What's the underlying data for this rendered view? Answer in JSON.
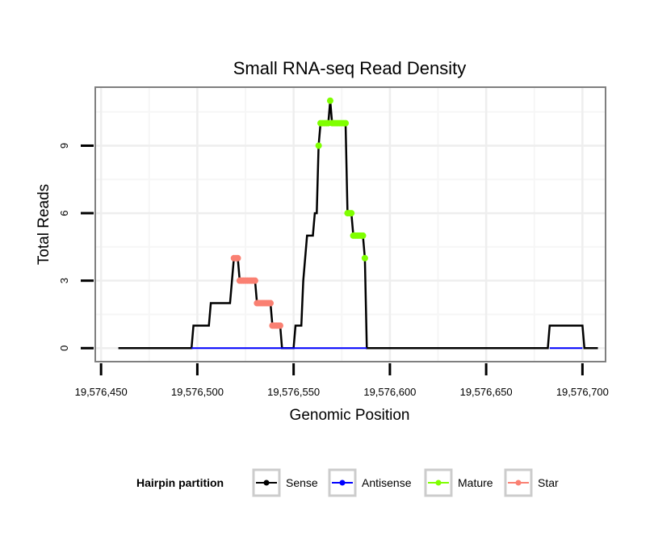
{
  "chart_data": {
    "type": "line",
    "title": "Small RNA-seq Read Density",
    "xlabel": "Genomic Position",
    "ylabel": "Total Reads",
    "xlim": [
      19576447,
      19576712
    ],
    "ylim": [
      -0.6,
      11.6
    ],
    "x_ticks": [
      19576450,
      19576500,
      19576550,
      19576600,
      19576650,
      19576700
    ],
    "x_tick_labels": [
      "19,576,450",
      "19,576,500",
      "19,576,550",
      "19,576,600",
      "19,576,650",
      "19,576,700"
    ],
    "y_ticks": [
      0,
      3,
      6,
      9
    ],
    "y_tick_labels": [
      "0",
      "3",
      "6",
      "9"
    ],
    "grid": true,
    "legend": {
      "title": "Hairpin partition",
      "position": "bottom",
      "entries": [
        {
          "name": "Sense",
          "color": "#000000"
        },
        {
          "name": "Antisense",
          "color": "#0000ff"
        },
        {
          "name": "Mature",
          "color": "#7fff00"
        },
        {
          "name": "Star",
          "color": "#fa8072"
        }
      ]
    },
    "series": [
      {
        "name": "Sense",
        "color": "#000000",
        "points": [
          [
            19576459,
            0
          ],
          [
            19576497,
            0
          ],
          [
            19576498,
            1
          ],
          [
            19576506,
            1
          ],
          [
            19576507,
            2
          ],
          [
            19576517,
            2
          ],
          [
            19576518,
            3
          ],
          [
            19576519,
            4
          ],
          [
            19576521,
            4
          ],
          [
            19576522,
            3
          ],
          [
            19576530,
            3
          ],
          [
            19576531,
            2
          ],
          [
            19576538,
            2
          ],
          [
            19576539,
            1
          ],
          [
            19576543,
            1
          ],
          [
            19576544,
            0
          ],
          [
            19576550,
            0
          ],
          [
            19576551,
            1
          ],
          [
            19576554,
            1
          ],
          [
            19576555,
            3
          ],
          [
            19576557,
            5
          ],
          [
            19576560,
            5
          ],
          [
            19576561,
            6
          ],
          [
            19576562,
            6
          ],
          [
            19576563,
            9
          ],
          [
            19576564,
            10
          ],
          [
            19576568,
            10
          ],
          [
            19576569,
            11
          ],
          [
            19576570,
            10
          ],
          [
            19576577,
            10
          ],
          [
            19576578,
            6
          ],
          [
            19576580,
            6
          ],
          [
            19576581,
            5
          ],
          [
            19576586,
            5
          ],
          [
            19576587,
            4
          ],
          [
            19576588,
            0
          ],
          [
            19576682,
            0
          ],
          [
            19576683,
            1
          ],
          [
            19576700,
            1
          ],
          [
            19576701,
            0
          ],
          [
            19576708,
            0
          ]
        ]
      },
      {
        "name": "Antisense",
        "color": "#0000ff",
        "points": [
          [
            19576497,
            0
          ],
          [
            19576588,
            0
          ],
          [
            19576683,
            0
          ],
          [
            19576700,
            0
          ]
        ]
      },
      {
        "name": "Mature",
        "color": "#7fff00",
        "points": [
          [
            19576563,
            9
          ],
          [
            19576564,
            10
          ],
          [
            19576565,
            10
          ],
          [
            19576566,
            10
          ],
          [
            19576567,
            10
          ],
          [
            19576568,
            10
          ],
          [
            19576569,
            11
          ],
          [
            19576570,
            10
          ],
          [
            19576571,
            10
          ],
          [
            19576572,
            10
          ],
          [
            19576573,
            10
          ],
          [
            19576574,
            10
          ],
          [
            19576575,
            10
          ],
          [
            19576576,
            10
          ],
          [
            19576577,
            10
          ],
          [
            19576578,
            6
          ],
          [
            19576579,
            6
          ],
          [
            19576580,
            6
          ],
          [
            19576581,
            5
          ],
          [
            19576582,
            5
          ],
          [
            19576583,
            5
          ],
          [
            19576584,
            5
          ],
          [
            19576585,
            5
          ],
          [
            19576586,
            5
          ],
          [
            19576587,
            4
          ]
        ]
      },
      {
        "name": "Star",
        "color": "#fa8072",
        "points": [
          [
            19576519,
            4
          ],
          [
            19576520,
            4
          ],
          [
            19576521,
            4
          ],
          [
            19576522,
            3
          ],
          [
            19576523,
            3
          ],
          [
            19576524,
            3
          ],
          [
            19576525,
            3
          ],
          [
            19576526,
            3
          ],
          [
            19576527,
            3
          ],
          [
            19576528,
            3
          ],
          [
            19576529,
            3
          ],
          [
            19576530,
            3
          ],
          [
            19576531,
            2
          ],
          [
            19576532,
            2
          ],
          [
            19576533,
            2
          ],
          [
            19576534,
            2
          ],
          [
            19576535,
            2
          ],
          [
            19576536,
            2
          ],
          [
            19576537,
            2
          ],
          [
            19576538,
            2
          ],
          [
            19576539,
            1
          ],
          [
            19576540,
            1
          ],
          [
            19576541,
            1
          ],
          [
            19576542,
            1
          ],
          [
            19576543,
            1
          ]
        ]
      }
    ]
  }
}
